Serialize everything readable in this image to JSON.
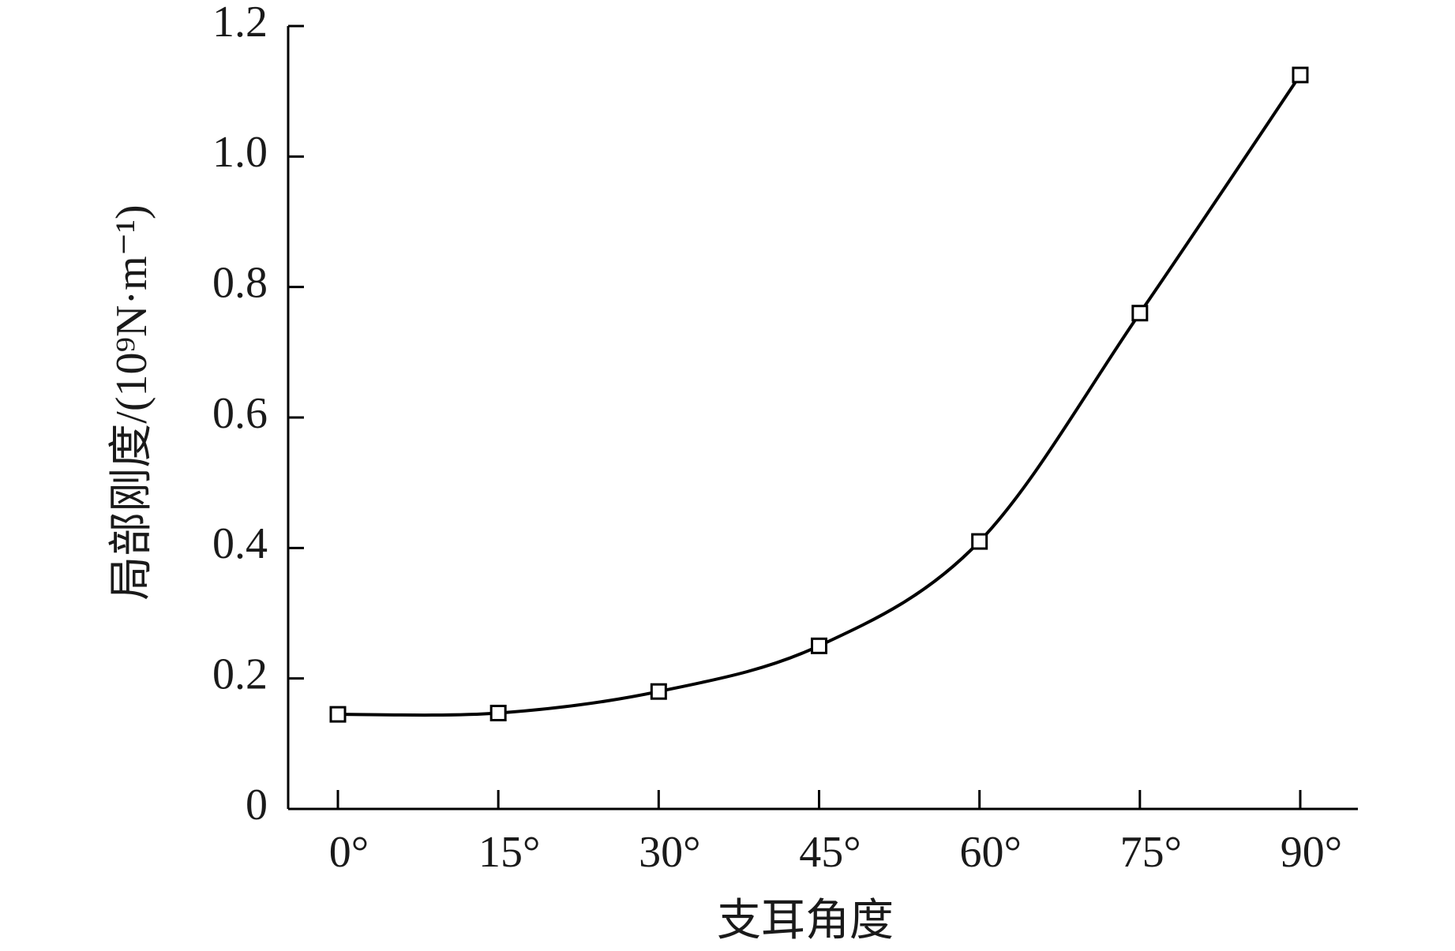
{
  "chart_data": {
    "type": "line",
    "x_label": "支耳角度",
    "y_label": "局部刚度/(10⁹N·m⁻¹)",
    "categories": [
      "0°",
      "15°",
      "30°",
      "45°",
      "60°",
      "75°",
      "90°"
    ],
    "series": [
      {
        "color": "#000000",
        "values": [
          0.145,
          0.147,
          0.18,
          0.25,
          0.41,
          0.76,
          1.125
        ]
      }
    ],
    "ylim": [
      0,
      1.2
    ],
    "yticks": [
      0,
      0.2,
      0.4,
      0.6,
      0.8,
      {
        "value": 1,
        "label": "1.0"
      },
      1.2
    ],
    "grid": false,
    "marker": "square"
  }
}
